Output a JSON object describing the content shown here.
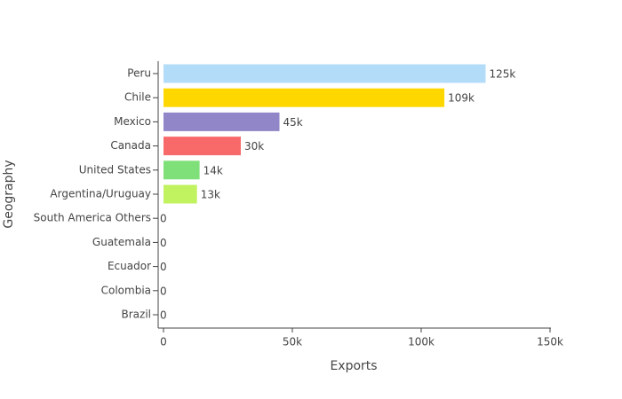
{
  "chart_data": {
    "type": "bar",
    "orientation": "horizontal",
    "x_label": "Exports",
    "y_label": "Geography",
    "categories": [
      "Peru",
      "Chile",
      "Mexico",
      "Canada",
      "United States",
      "Argentina/Uruguay",
      "South America Others",
      "Guatemala",
      "Ecuador",
      "Colombia",
      "Brazil"
    ],
    "values": [
      125000,
      109000,
      45000,
      30000,
      14000,
      13000,
      0,
      0,
      0,
      0,
      0
    ],
    "value_labels": [
      "125k",
      "109k",
      "45k",
      "30k",
      "14k",
      "13k",
      "0",
      "0",
      "0",
      "0",
      "0"
    ],
    "colors": [
      "#b3dcf9",
      "#ffd700",
      "#9086c8",
      "#f86a6a",
      "#7fe07a",
      "#c1f260",
      null,
      null,
      null,
      null,
      null
    ],
    "xlim": [
      0,
      150000
    ],
    "xticks": [
      0,
      {
        "value": 50000,
        "label": "50k"
      },
      {
        "value": 100000,
        "label": "100k"
      },
      {
        "value": 150000,
        "label": "150k"
      }
    ]
  }
}
